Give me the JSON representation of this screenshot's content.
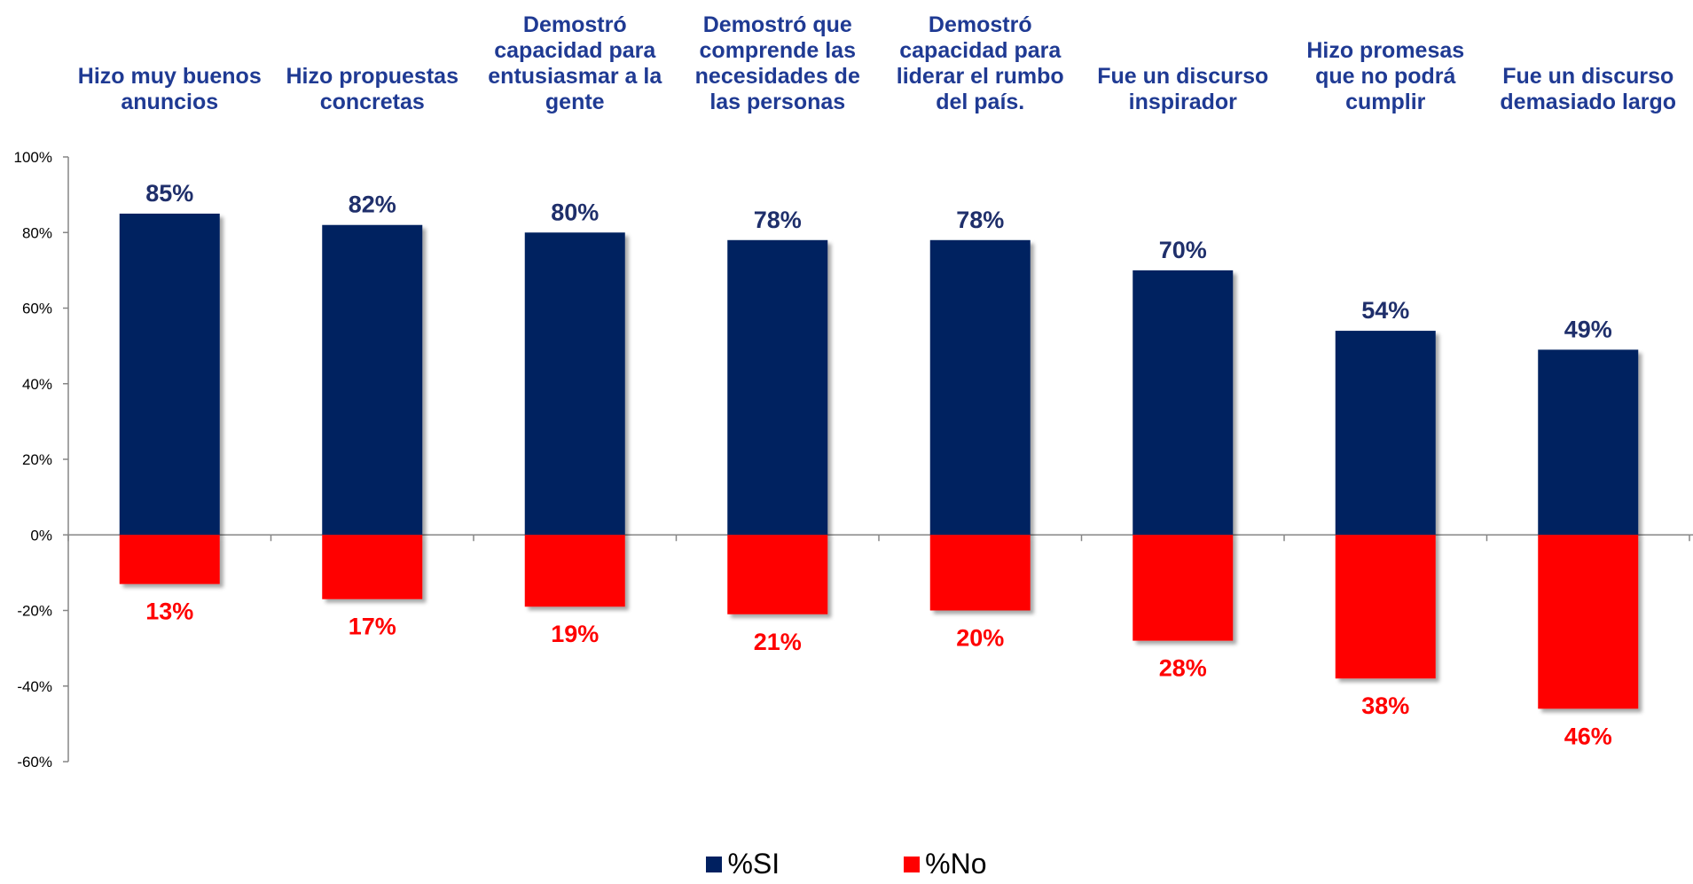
{
  "chart_data": {
    "type": "bar",
    "title": "",
    "xlabel": "",
    "ylabel": "",
    "ylim": [
      -60,
      100
    ],
    "yticks": [
      "100%",
      "80%",
      "60%",
      "40%",
      "20%",
      "0%",
      "-20%",
      "-40%",
      "-60%"
    ],
    "grid": false,
    "legend_position": "bottom-center",
    "categories": [
      [
        "Hizo muy buenos",
        "anuncios"
      ],
      [
        "Hizo propuestas",
        "concretas"
      ],
      [
        "Demostró",
        "capacidad para",
        "entusiasmar a la",
        "gente"
      ],
      [
        "Demostró que",
        "comprende las",
        "necesidades de",
        "las personas"
      ],
      [
        "Demostró",
        "capacidad para",
        "liderar el rumbo",
        "del país."
      ],
      [
        "Fue un discurso",
        "inspirador"
      ],
      [
        "Hizo promesas",
        "que no podrá",
        "cumplir"
      ],
      [
        "Fue un discurso",
        "demasiado largo"
      ]
    ],
    "series": [
      {
        "name": "%SI",
        "color": "#002060",
        "values": [
          85,
          82,
          80,
          78,
          78,
          70,
          54,
          49
        ],
        "labels": [
          "85%",
          "82%",
          "80%",
          "78%",
          "78%",
          "70%",
          "54%",
          "49%"
        ]
      },
      {
        "name": "%No",
        "color": "#ff0000",
        "values": [
          -13,
          -17,
          -19,
          -21,
          -20,
          -28,
          -38,
          -46
        ],
        "labels": [
          "13%",
          "17%",
          "19%",
          "21%",
          "20%",
          "28%",
          "38%",
          "46%"
        ]
      }
    ]
  }
}
